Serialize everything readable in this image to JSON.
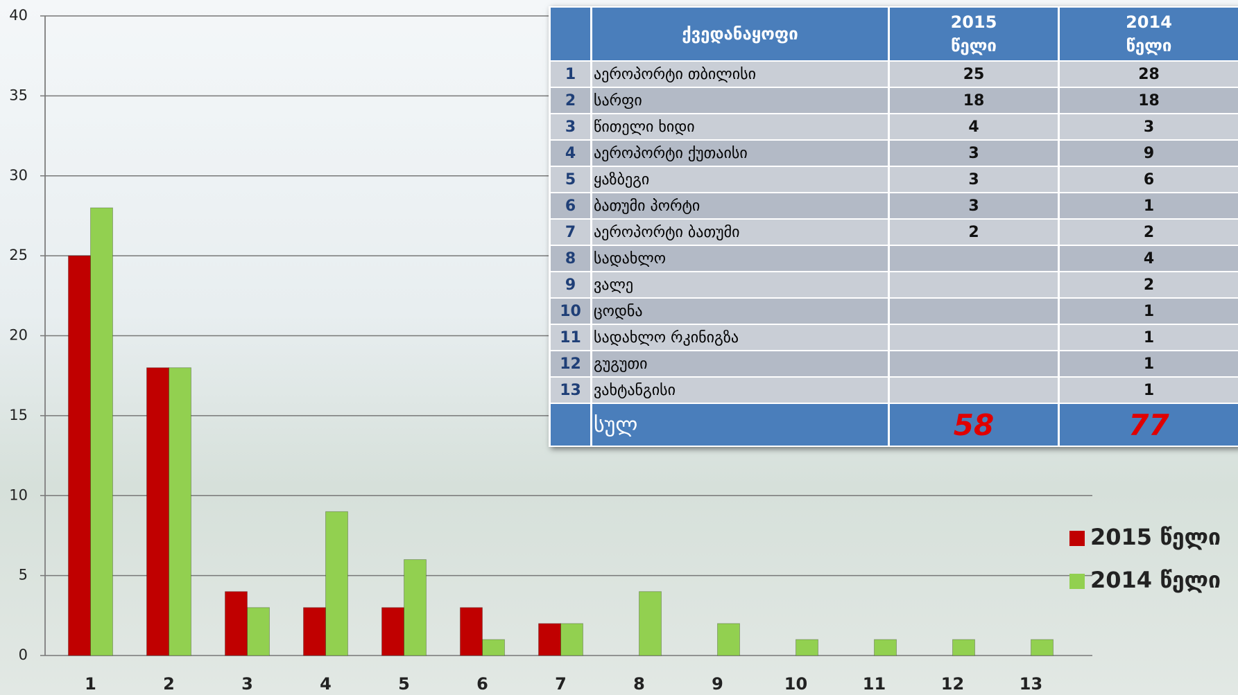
{
  "chart_data": {
    "type": "bar",
    "categories": [
      "1",
      "2",
      "3",
      "4",
      "5",
      "6",
      "7",
      "8",
      "9",
      "10",
      "11",
      "12",
      "13"
    ],
    "series": [
      {
        "name": "2015 წელი",
        "color": "#c00000",
        "values": [
          25,
          18,
          4,
          3,
          3,
          3,
          2,
          null,
          null,
          null,
          null,
          null,
          null
        ]
      },
      {
        "name": "2014 წელი",
        "color": "#92d050",
        "values": [
          28,
          18,
          3,
          9,
          6,
          1,
          2,
          4,
          2,
          1,
          1,
          1,
          1
        ]
      }
    ],
    "ylim": [
      0,
      40
    ],
    "yticks": [
      0,
      5,
      10,
      15,
      20,
      25,
      30,
      35,
      40
    ],
    "grid": true,
    "legend": "right"
  },
  "table": {
    "header": [
      "ქვედანაყოფი",
      "2015\nწელი",
      "2014\nწელი"
    ],
    "rows": [
      [
        1,
        "აეროპორტი თბილისი",
        25,
        28
      ],
      [
        2,
        "სარფი",
        18,
        18
      ],
      [
        3,
        "წითელი ხიდი",
        4,
        3
      ],
      [
        4,
        "აეროპორტი ქუთაისი",
        3,
        9
      ],
      [
        5,
        "ყაზბეგი",
        3,
        6
      ],
      [
        6,
        "ბათუმი პორტი",
        3,
        1
      ],
      [
        7,
        "აეროპორტი ბათუმი",
        2,
        2
      ],
      [
        8,
        "სადახლო",
        null,
        4
      ],
      [
        9,
        "ვალე",
        null,
        2
      ],
      [
        10,
        "ცოდნა",
        null,
        1
      ],
      [
        11,
        "სადახლო რკინიგზა",
        null,
        1
      ],
      [
        12,
        "გუგუთი",
        null,
        1
      ],
      [
        13,
        "ვახტანგისი",
        null,
        1
      ]
    ],
    "total": [
      "სულ",
      58,
      77
    ]
  }
}
